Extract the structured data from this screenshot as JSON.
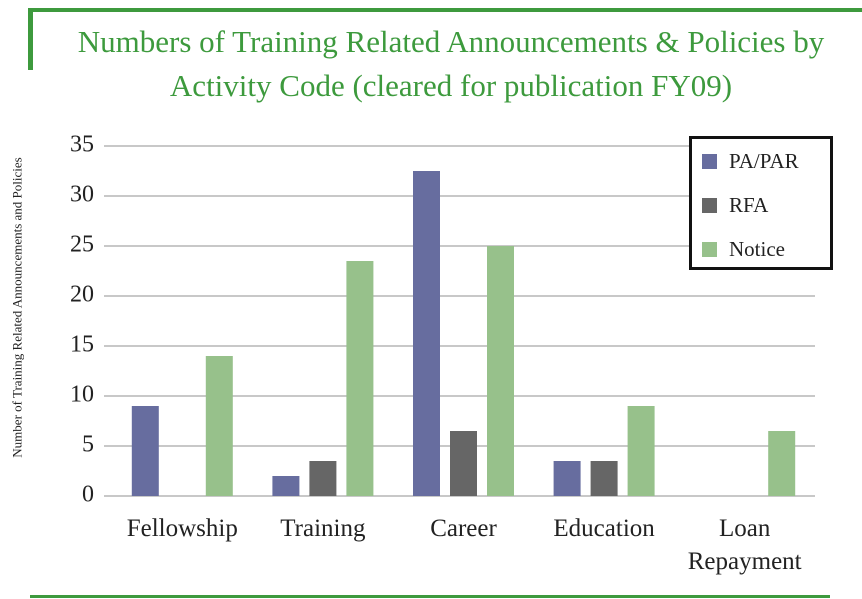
{
  "chart_data": {
    "type": "bar",
    "title": "Numbers of Training Related Announcements & Policies by Activity Code (cleared for publication FY09)",
    "ylabel": "Number of Training Related Announcements and Policies",
    "categories": [
      "Fellowship",
      "Training",
      "Career",
      "Education",
      "Loan Repayment"
    ],
    "series": [
      {
        "name": "PA/PAR",
        "color": "#676d9f",
        "values": [
          9,
          2,
          32.5,
          3.5,
          0
        ]
      },
      {
        "name": "RFA",
        "color": "#666666",
        "values": [
          0,
          3.5,
          6.5,
          3.5,
          0
        ]
      },
      {
        "name": "Notice",
        "color": "#97c18b",
        "values": [
          14,
          23.5,
          25,
          9,
          6.5
        ]
      }
    ],
    "ylim": [
      0,
      35
    ],
    "yticks": [
      0,
      5,
      10,
      15,
      20,
      25,
      30,
      35
    ],
    "grid": true,
    "legend": "top-right"
  }
}
